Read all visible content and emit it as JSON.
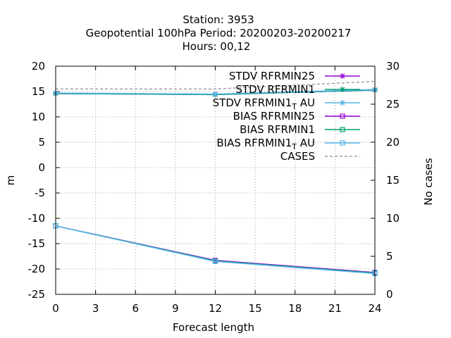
{
  "chart_data": {
    "type": "line",
    "title_lines": [
      "Station:     3953",
      "Geopotential 100hPa   Period: 20200203-20200217",
      "Hours:  00,12"
    ],
    "xlabel": "Forecast length",
    "ylabel": "m",
    "y2label": "No cases",
    "xlim": [
      0,
      24
    ],
    "ylim": [
      -25,
      20
    ],
    "y2lim": [
      0,
      30
    ],
    "x_ticks": [
      "0",
      "3",
      "6",
      "9",
      "12",
      "15",
      "18",
      "21",
      "24"
    ],
    "y_ticks": [
      "20",
      "15",
      "10",
      "5",
      "0",
      "-5",
      "-10",
      "-15",
      "-20",
      "-25"
    ],
    "y2_ticks": [
      "30",
      "25",
      "20",
      "15",
      "10",
      "5",
      "0"
    ],
    "grid": true,
    "legend_position": "top-right",
    "x": [
      0,
      12,
      24
    ],
    "series": [
      {
        "name": "STDV RFRMIN25",
        "axis": "y",
        "color": "#9400d3",
        "marker": "star",
        "dash": false,
        "values": [
          14.6,
          14.4,
          15.3
        ]
      },
      {
        "name": "STDV RFRMIN1",
        "axis": "y",
        "color": "#009e73",
        "marker": "star",
        "dash": false,
        "values": [
          14.6,
          14.4,
          15.3
        ]
      },
      {
        "name": "STDV RFRMIN1_T AU",
        "axis": "y",
        "color": "#56b4e9",
        "marker": "star",
        "dash": false,
        "values": [
          14.7,
          14.5,
          15.4
        ]
      },
      {
        "name": "BIAS RFRMIN25",
        "axis": "y",
        "color": "#9400d3",
        "marker": "square",
        "dash": false,
        "values": [
          -11.5,
          -18.3,
          -20.7
        ]
      },
      {
        "name": "BIAS RFRMIN1",
        "axis": "y",
        "color": "#009e73",
        "marker": "square",
        "dash": false,
        "values": [
          -11.5,
          -18.4,
          -20.8
        ]
      },
      {
        "name": "BIAS RFRMIN1_T AU",
        "axis": "y",
        "color": "#56b4e9",
        "marker": "square",
        "dash": false,
        "values": [
          -11.5,
          -18.5,
          -20.9
        ]
      },
      {
        "name": "CASES",
        "axis": "y2",
        "color": "#a0a0a0",
        "marker": "none",
        "dash": true,
        "values": [
          27,
          27,
          28
        ]
      }
    ],
    "legend": [
      {
        "main": "STDV RFRMIN25",
        "sub": "",
        "tail": ""
      },
      {
        "main": "STDV RFRMIN1",
        "sub": "",
        "tail": ""
      },
      {
        "main": "STDV RFRMIN1",
        "sub": "T",
        "tail": "AU"
      },
      {
        "main": "BIAS RFRMIN25",
        "sub": "",
        "tail": ""
      },
      {
        "main": "BIAS RFRMIN1",
        "sub": "",
        "tail": ""
      },
      {
        "main": "BIAS RFRMIN1",
        "sub": "T",
        "tail": "AU"
      },
      {
        "main": "CASES",
        "sub": "",
        "tail": ""
      }
    ]
  }
}
